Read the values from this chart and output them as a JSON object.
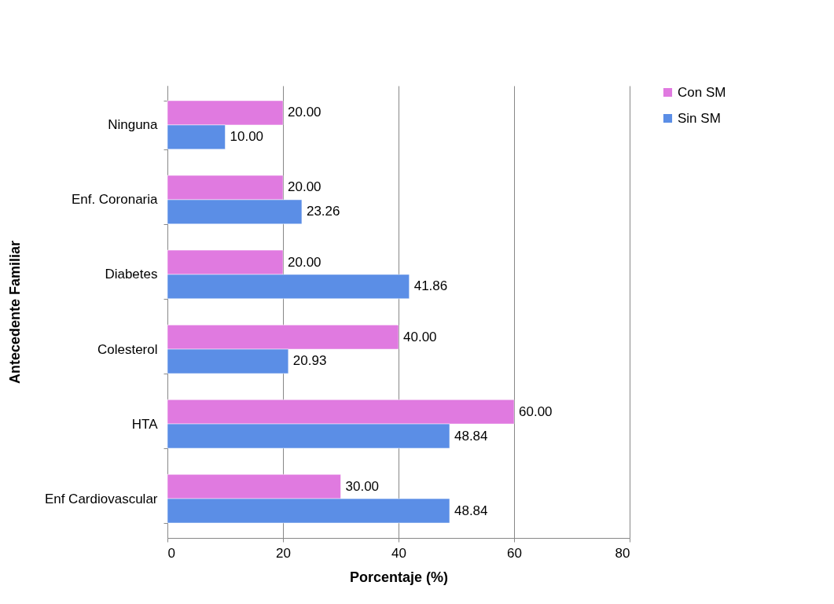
{
  "chart_data": {
    "type": "bar",
    "orientation": "horizontal",
    "xlabel": "Porcentaje (%)",
    "ylabel": "Antecedente Familiar",
    "categories": [
      "Ninguna",
      "Enf. Coronaria",
      "Diabetes",
      "Colesterol",
      "HTA",
      "Enf Cardiovascular"
    ],
    "series": [
      {
        "name": "Con SM",
        "color": "#e07ae0",
        "values": [
          20,
          20,
          20,
          40,
          60,
          30
        ],
        "value_labels": [
          "20.00",
          "20.00",
          "20.00",
          "40.00",
          "60.00",
          "30.00"
        ]
      },
      {
        "name": "Sin SM",
        "color": "#5b8ee6",
        "values": [
          10,
          23.26,
          41.86,
          20.93,
          48.84,
          48.84
        ],
        "value_labels": [
          "10.00",
          "23.26",
          "41.86",
          "20.93",
          "48.84",
          "48.84"
        ]
      }
    ],
    "xlim": [
      0,
      80
    ],
    "xticks": [
      0,
      20,
      40,
      60,
      80
    ],
    "grid": "x",
    "legend": "right"
  }
}
